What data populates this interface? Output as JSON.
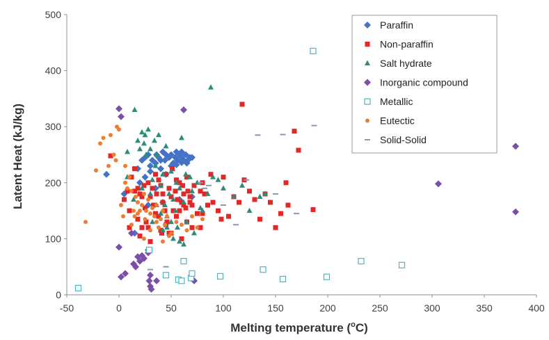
{
  "chart_data": {
    "type": "scatter",
    "title": "",
    "xlabel": "Melting temperature (",
    "xlabel_sup": "o",
    "xlabel_tail": "C)",
    "ylabel": "Latent Heat (kJ/kg)",
    "xlim": [
      -50,
      400
    ],
    "ylim": [
      0,
      500
    ],
    "xticks": [
      "-50",
      "0",
      "50",
      "100",
      "150",
      "200",
      "250",
      "300",
      "350",
      "400"
    ],
    "yticks": [
      "0",
      "100",
      "200",
      "300",
      "400",
      "500"
    ],
    "grid": false,
    "legend_position": "top-right",
    "series": [
      {
        "name": "Paraffin",
        "marker": "diamond",
        "color": "#4472c4",
        "x": [
          -12,
          5,
          18,
          22,
          25,
          28,
          30,
          32,
          35,
          36,
          38,
          40,
          42,
          44,
          45,
          48,
          50,
          52,
          54,
          55,
          56,
          58,
          60,
          60,
          62,
          64,
          65,
          66,
          68,
          70,
          30,
          40,
          50,
          55,
          60,
          65,
          20,
          25,
          35,
          45,
          28,
          42,
          58,
          70,
          15
        ],
        "y": [
          215,
          180,
          225,
          240,
          245,
          250,
          230,
          240,
          235,
          250,
          245,
          240,
          255,
          240,
          250,
          245,
          250,
          235,
          245,
          255,
          240,
          250,
          255,
          245,
          240,
          250,
          235,
          240,
          245,
          245,
          220,
          225,
          230,
          232,
          236,
          238,
          200,
          210,
          190,
          215,
          160,
          165,
          170,
          175,
          110
        ]
      },
      {
        "name": "Non-paraffin",
        "marker": "square",
        "color": "#e32626",
        "x": [
          -8,
          5,
          8,
          10,
          12,
          15,
          18,
          20,
          22,
          24,
          26,
          28,
          30,
          32,
          33,
          35,
          36,
          38,
          40,
          41,
          42,
          44,
          45,
          46,
          48,
          50,
          51,
          52,
          54,
          55,
          56,
          58,
          60,
          61,
          62,
          64,
          65,
          66,
          68,
          70,
          72,
          75,
          78,
          80,
          82,
          85,
          88,
          90,
          95,
          98,
          100,
          105,
          110,
          115,
          118,
          120,
          125,
          130,
          135,
          140,
          145,
          150,
          155,
          160,
          162,
          168,
          172,
          186,
          25,
          35,
          45,
          55,
          65,
          18,
          28,
          38,
          48,
          58,
          68,
          78,
          10,
          20,
          30,
          40,
          50,
          60,
          70,
          80,
          22,
          42,
          62,
          15
        ],
        "y": [
          248,
          170,
          185,
          150,
          210,
          185,
          190,
          180,
          120,
          195,
          130,
          200,
          175,
          190,
          160,
          215,
          180,
          205,
          195,
          110,
          180,
          150,
          215,
          130,
          190,
          175,
          225,
          150,
          185,
          205,
          170,
          200,
          165,
          195,
          180,
          155,
          210,
          185,
          175,
          160,
          195,
          145,
          120,
          200,
          180,
          160,
          215,
          165,
          150,
          135,
          210,
          140,
          175,
          165,
          340,
          205,
          185,
          170,
          135,
          180,
          165,
          120,
          145,
          200,
          160,
          292,
          258,
          152,
          155,
          145,
          125,
          140,
          130,
          135,
          120,
          140,
          110,
          150,
          165,
          185,
          120,
          105,
          95,
          115,
          110,
          100,
          120,
          145,
          175,
          165,
          160,
          225
        ]
      },
      {
        "name": "Salt hydrate",
        "marker": "triangle",
        "color": "#2e8b7a",
        "x": [
          8,
          15,
          18,
          20,
          22,
          24,
          25,
          26,
          28,
          30,
          30,
          32,
          34,
          35,
          36,
          38,
          40,
          40,
          42,
          44,
          45,
          46,
          48,
          50,
          50,
          52,
          54,
          55,
          56,
          58,
          58,
          60,
          62,
          64,
          65,
          68,
          70,
          72,
          75,
          78,
          80,
          85,
          88,
          90,
          95,
          100,
          110,
          118,
          125,
          135,
          140,
          8,
          14,
          22,
          32,
          42,
          52,
          62,
          36,
          46
        ],
        "y": [
          255,
          330,
          275,
          260,
          290,
          270,
          285,
          250,
          295,
          180,
          260,
          205,
          275,
          230,
          250,
          285,
          195,
          145,
          215,
          160,
          265,
          140,
          180,
          130,
          220,
          170,
          150,
          200,
          120,
          190,
          95,
          280,
          165,
          215,
          130,
          210,
          185,
          110,
          200,
          155,
          150,
          180,
          370,
          210,
          205,
          190,
          175,
          195,
          150,
          175,
          180,
          210,
          170,
          190,
          130,
          115,
          100,
          90,
          160,
          120
        ]
      },
      {
        "name": "Inorganic compound",
        "marker": "diamond",
        "color": "#7b4fa8",
        "x": [
          0,
          2,
          0,
          2,
          6,
          14,
          16,
          18,
          20,
          22,
          24,
          28,
          28,
          29,
          30,
          30,
          31,
          36,
          62,
          72,
          306,
          380,
          380,
          12
        ],
        "y": [
          332,
          318,
          85,
          32,
          38,
          55,
          50,
          68,
          60,
          70,
          65,
          75,
          80,
          25,
          35,
          15,
          10,
          25,
          330,
          25,
          198,
          265,
          148,
          110
        ]
      },
      {
        "name": "Metallic",
        "marker": "square-open",
        "color": "#4fb3c8",
        "x": [
          -39,
          29,
          45,
          57,
          60,
          62,
          69,
          70,
          97,
          138,
          157,
          199,
          232,
          271,
          186
        ],
        "y": [
          12,
          80,
          35,
          27,
          25,
          60,
          30,
          38,
          33,
          45,
          28,
          32,
          60,
          53,
          435
        ]
      },
      {
        "name": "Eutectic",
        "marker": "circle",
        "color": "#ed7d31",
        "x": [
          -32,
          -22,
          -18,
          -15,
          -10,
          -8,
          -5,
          -3,
          -2,
          0,
          2,
          4,
          6,
          8,
          10,
          12,
          14,
          15,
          16,
          18,
          20,
          22,
          24,
          25,
          26,
          28,
          30,
          32,
          34,
          36,
          38,
          40,
          42,
          44,
          46,
          48,
          50,
          55,
          60,
          65,
          70,
          75,
          80,
          6,
          12,
          18,
          24,
          30,
          36,
          42
        ],
        "y": [
          130,
          222,
          270,
          280,
          230,
          285,
          250,
          240,
          300,
          295,
          160,
          140,
          200,
          190,
          210,
          125,
          150,
          140,
          175,
          145,
          150,
          160,
          180,
          135,
          150,
          170,
          145,
          155,
          140,
          160,
          120,
          135,
          150,
          125,
          140,
          105,
          110,
          130,
          125,
          115,
          140,
          120,
          135,
          230,
          185,
          165,
          100,
          115,
          130,
          95
        ]
      },
      {
        "name": "Solid-Solid",
        "marker": "dash",
        "color": "#8896b8",
        "x": [
          78,
          82,
          86,
          112,
          122,
          133,
          150,
          157,
          187,
          170,
          30,
          45,
          100
        ],
        "y": [
          200,
          190,
          195,
          125,
          205,
          285,
          180,
          286,
          302,
          145,
          45,
          50,
          160
        ]
      }
    ]
  }
}
